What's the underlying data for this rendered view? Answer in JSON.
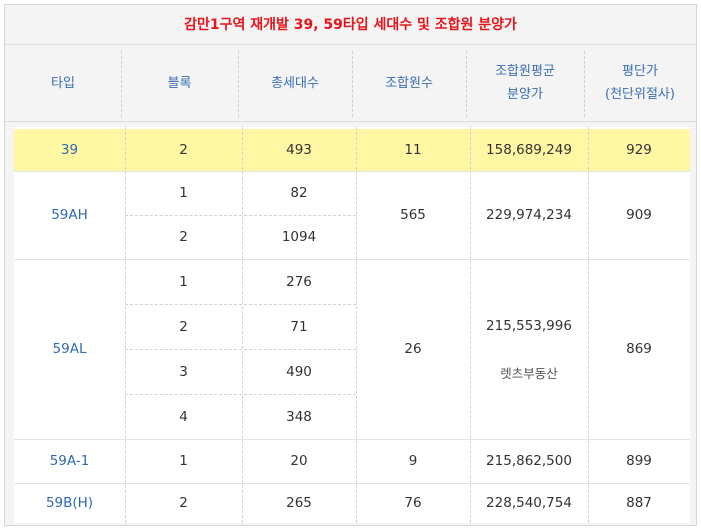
{
  "title": "감만1구역 재개발 39, 59타입 세대수 및 조합원 분양가",
  "headers": [
    "타입",
    "블록",
    "총세대수",
    "조합원수",
    "조합원평균\n분양가",
    "평단가\n(천단위절사)"
  ],
  "rows": {
    "r39": {
      "type": "39",
      "block": "2",
      "units": "493",
      "members": "11",
      "price": "158,689,249",
      "pyeong": "929"
    },
    "r59AH": {
      "type": "59AH",
      "blocks": [
        "1",
        "2"
      ],
      "units": [
        "82",
        "1094"
      ],
      "members": "565",
      "price": "229,974,234",
      "pyeong": "909"
    },
    "r59AL": {
      "type": "59AL",
      "blocks": [
        "1",
        "2",
        "3",
        "4"
      ],
      "units": [
        "276",
        "71",
        "490",
        "348"
      ],
      "members": "26",
      "price": "215,553,996",
      "note": "렛츠부동산",
      "pyeong": "869"
    },
    "r59A1": {
      "type": "59A-1",
      "block": "1",
      "units": "20",
      "members": "9",
      "price": "215,862,500",
      "pyeong": "899"
    },
    "r59BH": {
      "type": "59B(H)",
      "block": "2",
      "units": "265",
      "members": "76",
      "price": "228,540,754",
      "pyeong": "887"
    }
  },
  "colors": {
    "title": "#e8141c",
    "header_text": "#3a6fb2",
    "highlight": "#fff7a4",
    "type_text": "#2f6ab3"
  }
}
